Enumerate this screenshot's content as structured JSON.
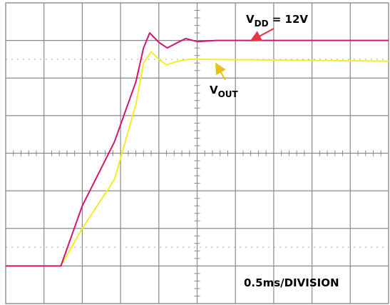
{
  "chart_data": {
    "type": "line",
    "annotations": [
      {
        "main": "V",
        "sub": "DD",
        "rest": " = 12V",
        "color": "#e8344a"
      },
      {
        "main": "V",
        "sub": "OUT",
        "rest": "",
        "color": "#e6c21a"
      }
    ],
    "note": "0.5ms/DIVISION",
    "series": [
      {
        "color": "#d6136f",
        "x": [
          0,
          0.72,
          1.0,
          1.42,
          1.7,
          1.8,
          1.88,
          2.0,
          2.11,
          2.25,
          2.35,
          2.5,
          2.75,
          5.0
        ],
        "values": [
          1.0,
          1.0,
          2.6,
          4.3,
          5.9,
          6.8,
          7.2,
          6.95,
          6.8,
          6.95,
          7.05,
          6.97,
          7.0,
          7.0
        ]
      },
      {
        "color": "#f2ee22",
        "x": [
          0,
          0.72,
          1.0,
          1.42,
          1.7,
          1.8,
          1.9,
          2.0,
          2.1,
          2.25,
          2.4,
          5.0
        ],
        "values": [
          1.0,
          1.0,
          2.0,
          3.3,
          5.3,
          6.4,
          6.7,
          6.5,
          6.35,
          6.45,
          6.5,
          6.45
        ]
      }
    ],
    "xlim": [
      0,
      5
    ],
    "ylim": [
      0,
      8
    ],
    "xticks": [
      0,
      0.5,
      1,
      1.5,
      2,
      2.5,
      3,
      3.5,
      4,
      4.5,
      5
    ],
    "yticks": [
      0,
      1,
      2,
      3,
      4,
      5,
      6,
      7,
      8
    ],
    "grid": true
  }
}
